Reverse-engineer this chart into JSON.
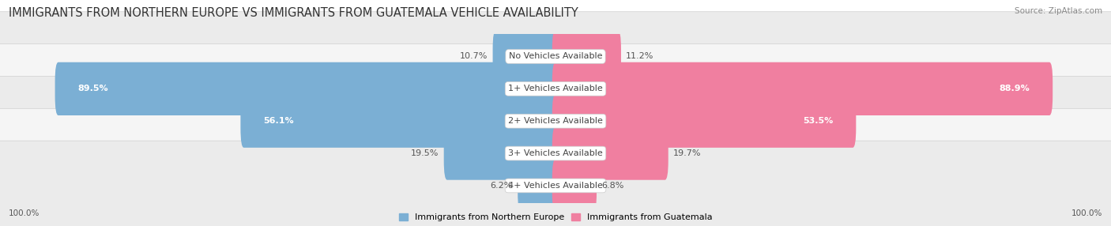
{
  "title": "IMMIGRANTS FROM NORTHERN EUROPE VS IMMIGRANTS FROM GUATEMALA VEHICLE AVAILABILITY",
  "source": "Source: ZipAtlas.com",
  "categories": [
    "No Vehicles Available",
    "1+ Vehicles Available",
    "2+ Vehicles Available",
    "3+ Vehicles Available",
    "4+ Vehicles Available"
  ],
  "north_europe_values": [
    10.7,
    89.5,
    56.1,
    19.5,
    6.2
  ],
  "guatemala_values": [
    11.2,
    88.9,
    53.5,
    19.7,
    6.8
  ],
  "north_europe_color": "#7bafd4",
  "guatemala_color": "#f07fa0",
  "row_bg_odd": "#ebebeb",
  "row_bg_even": "#f5f5f5",
  "legend_blue": "#7bafd4",
  "legend_pink": "#f07fa0",
  "total_label": "100.0%",
  "title_fontsize": 10.5,
  "label_fontsize": 8.0,
  "max_half": 100.0,
  "figsize": [
    14.06,
    2.86
  ]
}
